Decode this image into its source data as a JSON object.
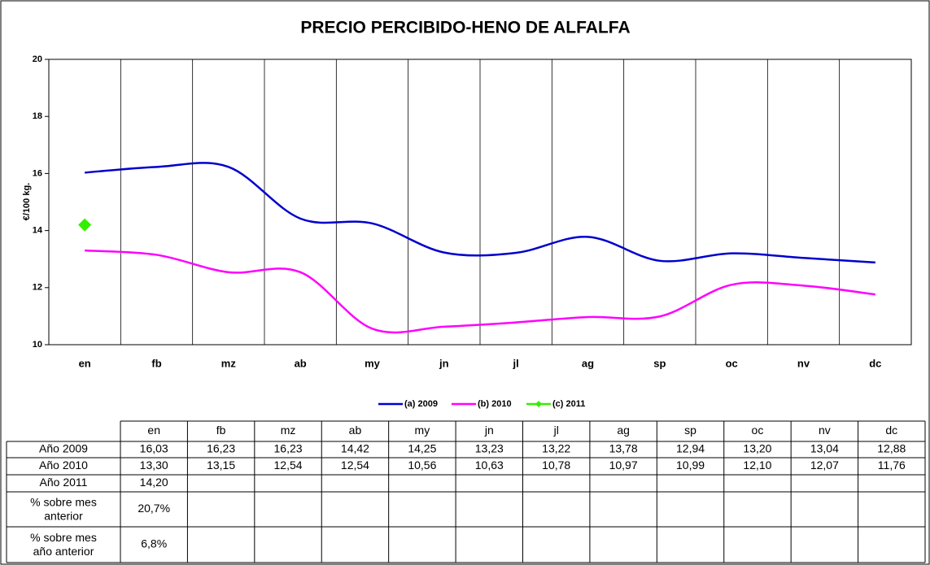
{
  "chart_data": {
    "type": "line",
    "title": "PRECIO PERCIBIDO-HENO DE ALFALFA",
    "ylabel": "€/100 kg.",
    "categories": [
      "en",
      "fb",
      "mz",
      "ab",
      "my",
      "jn",
      "jl",
      "ag",
      "sp",
      "oc",
      "nv",
      "dc"
    ],
    "series": [
      {
        "name": "(a) 2009",
        "row_label": "Año 2009",
        "color": "#0000cc",
        "smooth": true,
        "values": [
          16.03,
          16.23,
          16.23,
          14.42,
          14.25,
          13.23,
          13.22,
          13.78,
          12.94,
          13.2,
          13.04,
          12.88
        ],
        "value_labels": [
          "16,03",
          "16,23",
          "16,23",
          "14,42",
          "14,25",
          "13,23",
          "13,22",
          "13,78",
          "12,94",
          "13,20",
          "13,04",
          "12,88"
        ]
      },
      {
        "name": "(b) 2010",
        "row_label": "Año 2010",
        "color": "#ff00ff",
        "smooth": true,
        "values": [
          13.3,
          13.15,
          12.54,
          12.54,
          10.56,
          10.63,
          10.78,
          10.97,
          10.99,
          12.1,
          12.07,
          11.76
        ],
        "value_labels": [
          "13,30",
          "13,15",
          "12,54",
          "12,54",
          "10,56",
          "10,63",
          "10,78",
          "10,97",
          "10,99",
          "12,10",
          "12,07",
          "11,76"
        ]
      },
      {
        "name": "(c) 2011",
        "row_label": "Año 2011",
        "color": "#33ee00",
        "marker": "diamond",
        "values": [
          14.2,
          null,
          null,
          null,
          null,
          null,
          null,
          null,
          null,
          null,
          null,
          null
        ],
        "value_labels": [
          "14,20",
          null,
          null,
          null,
          null,
          null,
          null,
          null,
          null,
          null,
          null,
          null
        ]
      }
    ],
    "extra_rows": [
      {
        "label": "% sobre mes anterior",
        "values": [
          "20,7%"
        ]
      },
      {
        "label": "% sobre mes año anterior",
        "values": [
          "6,8%"
        ]
      }
    ],
    "ylim": [
      10,
      20
    ],
    "yticks": [
      10,
      12,
      14,
      16,
      18,
      20
    ],
    "grid": true,
    "legend": "bottom"
  }
}
